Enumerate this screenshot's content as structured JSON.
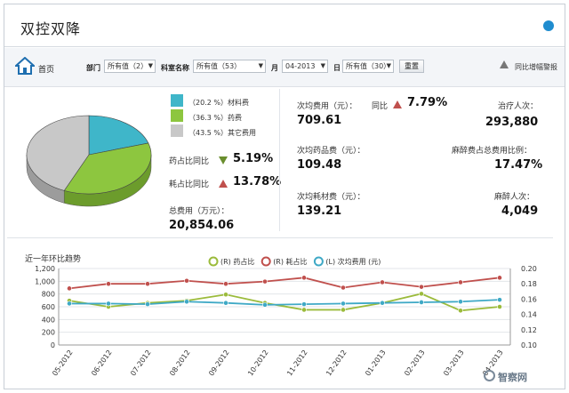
{
  "window": {
    "title": "双控双降"
  },
  "toolbar": {
    "home_label": "首页",
    "dept_label": "部门",
    "dept_value": "所有值（2）",
    "subject_label": "科室名称",
    "subject_value": "所有值（53）",
    "month_label": "月",
    "month_value": "04-2013",
    "day_label": "日",
    "day_value": "所有值（30）",
    "reset_label": "重置",
    "warning_label": "同比增幅警报"
  },
  "pie": {
    "legend": [
      {
        "label": "（20.2 %）材料费",
        "color": "#3fb6c9"
      },
      {
        "label": "（36.3 %）药费",
        "color": "#8dc63f"
      },
      {
        "label": "（43.5 %）其它费用",
        "color": "#c8c8c8"
      }
    ],
    "slices": [
      20.2,
      36.3,
      43.5
    ]
  },
  "left_metrics": {
    "drug_ratio_label": "药占比同比",
    "drug_ratio_value": "5.19%",
    "material_ratio_label": "耗占比同比",
    "material_ratio_value": "13.78%",
    "total_cost_label": "总费用（万元）：",
    "total_cost_value": "20,854.06"
  },
  "right_metrics": {
    "per_cost_label": "次均费用（元）：",
    "per_cost_value": "709.61",
    "yoy_label": "同比",
    "yoy_value": "7.79%",
    "treat_count_label": "治疗人次：",
    "treat_count_value": "293,880",
    "per_drug_label": "次均药品费（元）：",
    "per_drug_value": "109.48",
    "anesthesia_ratio_label": "麻醉费占总费用比例：",
    "anesthesia_ratio_value": "17.47%",
    "per_material_label": "次均耗材费（元）：",
    "per_material_value": "139.21",
    "anesthesia_count_label": "麻醉人次：",
    "anesthesia_count_value": "4,049"
  },
  "chart_title": "近一年环比趋势",
  "chart_data": {
    "type": "line",
    "categories": [
      "05-2012",
      "06-2012",
      "07-2012",
      "08-2012",
      "09-2012",
      "10-2012",
      "11-2012",
      "12-2012",
      "01-2013",
      "02-2013",
      "03-2013",
      "04-2013"
    ],
    "series": [
      {
        "name": "(R) 药占比",
        "axis": "right",
        "color": "#9bbb3b",
        "values": [
          0.158,
          0.15,
          0.155,
          0.158,
          0.166,
          0.155,
          0.146,
          0.146,
          0.155,
          0.167,
          0.145,
          0.15
        ]
      },
      {
        "name": "(R) 耗占比",
        "axis": "right",
        "color": "#c0504d",
        "values": [
          0.174,
          0.18,
          0.18,
          0.184,
          0.18,
          0.183,
          0.188,
          0.175,
          0.182,
          0.176,
          0.182,
          0.188
        ]
      },
      {
        "name": "(L) 次均费用 (元)",
        "axis": "left",
        "color": "#3fa9c6",
        "values": [
          650,
          650,
          640,
          680,
          660,
          630,
          640,
          650,
          660,
          670,
          680,
          710
        ]
      }
    ],
    "y_left": {
      "ticks": [
        "0",
        "200",
        "400",
        "600",
        "800",
        "1,000",
        "1,200"
      ],
      "lim": [
        0,
        1200
      ]
    },
    "y_right": {
      "ticks": [
        "0.10",
        "0.12",
        "0.14",
        "0.16",
        "0.18",
        "0.20"
      ],
      "lim": [
        0.1,
        0.2
      ]
    },
    "legend_position": "top"
  },
  "watermark": "智察网"
}
